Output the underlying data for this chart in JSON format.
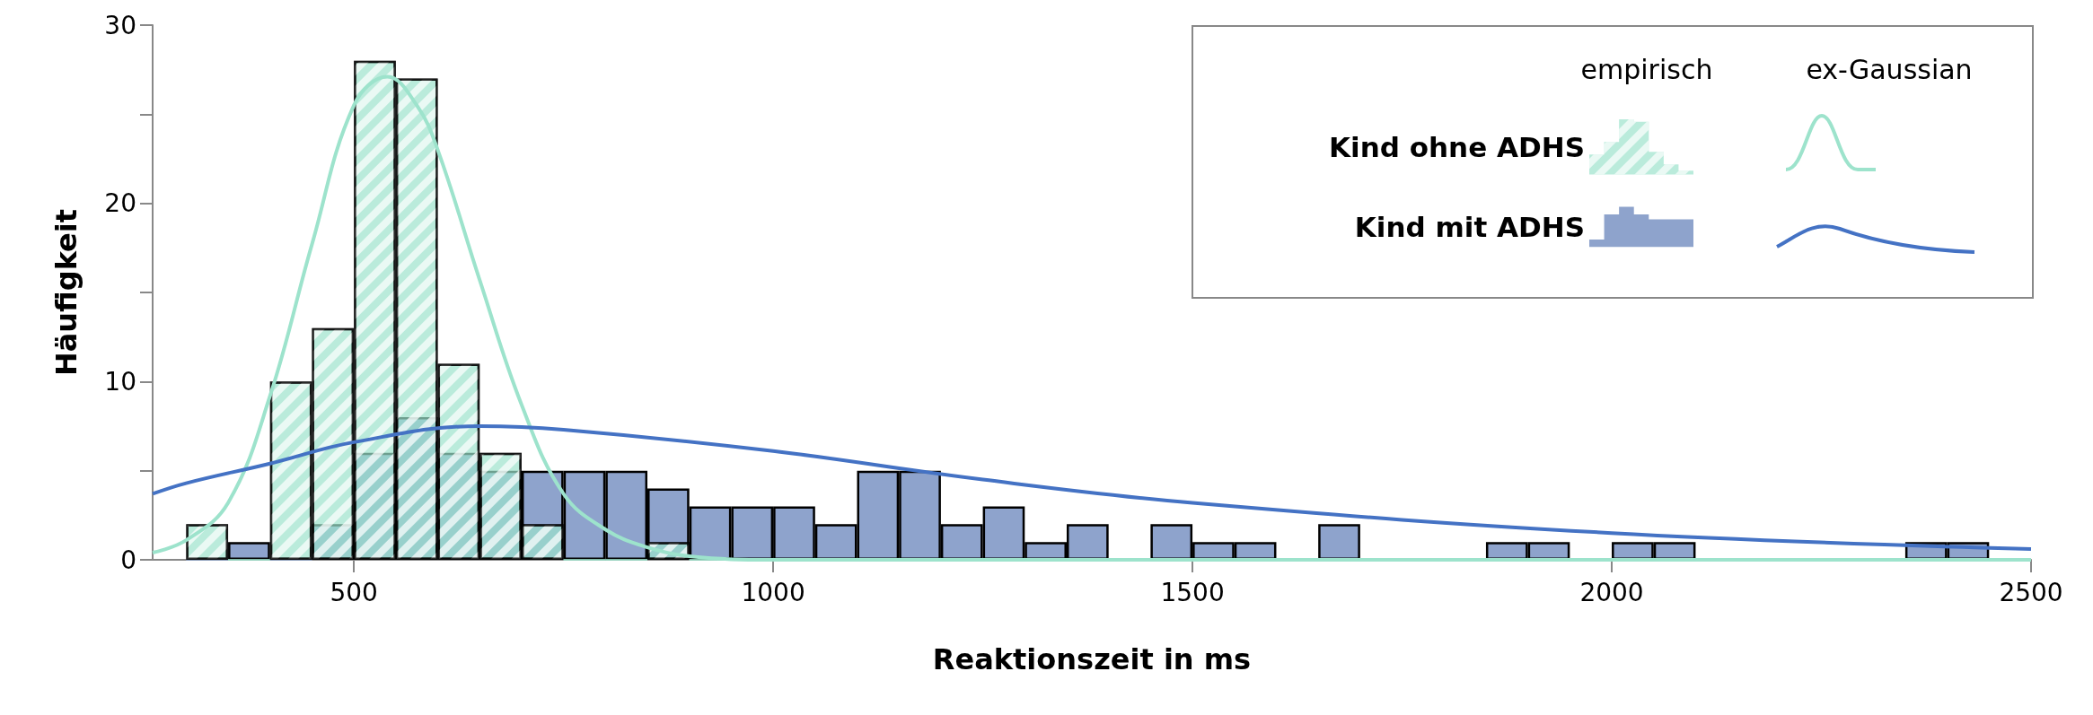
{
  "chart_data": {
    "type": "histogram",
    "xlabel": "Reaktionszeit in ms",
    "ylabel": "Häufigkeit",
    "annotations": [
      "empirisch",
      "ex-Gaussian"
    ],
    "legend": "top right",
    "grid": false,
    "bins": [
      300,
      350,
      400,
      450,
      500,
      550,
      600,
      650,
      700,
      750,
      800,
      850,
      900,
      950,
      1000,
      1050,
      1100,
      1150,
      1200,
      1250,
      1300,
      1350,
      1400,
      1450,
      1500,
      1550,
      1600,
      1650,
      1700,
      1750,
      1800,
      1850,
      1900,
      1950,
      2000,
      2050,
      2100,
      2150,
      2200,
      2250,
      2300,
      2350,
      2400,
      2450
    ],
    "series": [
      {
        "name": "Kind ohne ADHS",
        "color": "#9de3cc",
        "values": [
          2,
          0,
          10,
          13,
          28,
          27,
          11,
          6,
          2,
          0,
          0,
          1,
          0,
          0,
          0,
          0,
          0,
          0,
          0,
          0,
          0,
          0,
          0,
          0,
          0,
          0,
          0,
          0,
          0,
          0,
          0,
          0,
          0,
          0,
          0,
          0,
          0,
          0,
          0,
          0,
          0,
          0,
          0
        ]
      },
      {
        "name": "Kind mit ADHS",
        "color": "#8ea3cc",
        "values": [
          0,
          1,
          0,
          2,
          6,
          8,
          6,
          5,
          5,
          5,
          5,
          4,
          3,
          3,
          3,
          2,
          5,
          5,
          2,
          3,
          1,
          2,
          0,
          2,
          1,
          1,
          0,
          2,
          0,
          0,
          0,
          1,
          1,
          0,
          1,
          1,
          0,
          0,
          0,
          0,
          0,
          1,
          1
        ]
      },
      {
        "type": "line",
        "color": "#9de3cc",
        "x": [
          260,
          300,
          350,
          400,
          450,
          500,
          540,
          575,
          600,
          650,
          700,
          750,
          800,
          850,
          900,
          1000,
          1200,
          1600,
          2000,
          2500
        ],
        "values": [
          0.4,
          1.1,
          3.2,
          9.2,
          17.7,
          25.5,
          27.1,
          25.5,
          23,
          15.7,
          8.7,
          3.7,
          1.7,
          0.7,
          0.2,
          0,
          0,
          0,
          0,
          0
        ]
      },
      {
        "type": "line",
        "color": "#4472c4",
        "x": [
          260,
          300,
          400,
          500,
          650,
          750,
          1000,
          1250,
          1500,
          2000,
          2500
        ],
        "values": [
          3.7,
          4.3,
          5.4,
          6.6,
          7.5,
          7.3,
          6.1,
          4.5,
          3.2,
          1.5,
          0.6
        ]
      }
    ],
    "xlim": [
      260,
      2500
    ],
    "xticks": [
      500,
      1000,
      1500,
      2000,
      2500
    ],
    "ylim": [
      0,
      30
    ],
    "yticks": [
      0,
      {
        "value": 5,
        "label": null
      },
      10,
      {
        "value": 15,
        "label": null
      },
      20,
      {
        "value": 25,
        "label": null
      },
      30
    ]
  }
}
